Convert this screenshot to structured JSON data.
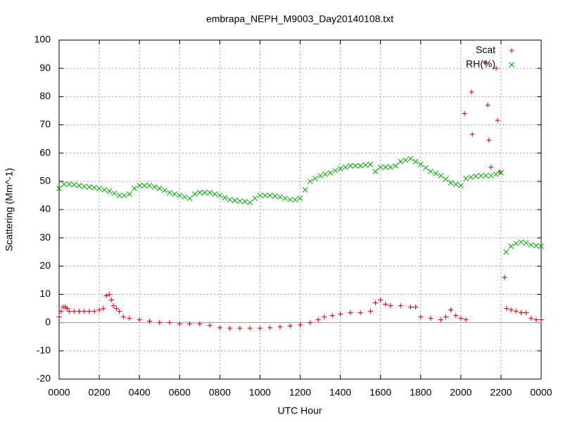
{
  "chart_data": {
    "type": "scatter",
    "title": "embrapa_NEPH_M9003_Day20140108.txt",
    "xlabel": "UTC Hour",
    "ylabel": "Scattering (Mm^-1)",
    "xlim": [
      0,
      24
    ],
    "ylim": [
      -20,
      100
    ],
    "xticks": [
      {
        "value": 0,
        "label": "0000"
      },
      {
        "value": 2,
        "label": "0200"
      },
      {
        "value": 4,
        "label": "0400"
      },
      {
        "value": 6,
        "label": "0600"
      },
      {
        "value": 8,
        "label": "0800"
      },
      {
        "value": 10,
        "label": "1000"
      },
      {
        "value": 12,
        "label": "1200"
      },
      {
        "value": 14,
        "label": "1400"
      },
      {
        "value": 16,
        "label": "1600"
      },
      {
        "value": 18,
        "label": "1800"
      },
      {
        "value": 20,
        "label": "2000"
      },
      {
        "value": 22,
        "label": "2200"
      },
      {
        "value": 24,
        "label": "0000"
      }
    ],
    "yticks": [
      -20,
      -10,
      0,
      10,
      20,
      30,
      40,
      50,
      60,
      70,
      80,
      90,
      100
    ],
    "grid": true,
    "zeroaxis": true,
    "legend": "top-right",
    "series": [
      {
        "name": "Scat",
        "color": "#cc0000",
        "marker": "plus",
        "x": [
          0,
          0.1,
          0.2,
          0.3,
          0.4,
          0.5,
          0.75,
          1,
          1.25,
          1.5,
          1.75,
          2,
          2.2,
          2.35,
          2.5,
          2.6,
          2.7,
          2.85,
          3,
          3.2,
          3.5,
          4,
          4.5,
          5,
          5.5,
          6,
          6.5,
          7,
          7.5,
          8,
          8.5,
          9,
          9.5,
          10,
          10.5,
          11,
          11.5,
          12,
          12.5,
          12.9,
          13.2,
          13.6,
          14,
          14.5,
          15,
          15.5,
          15.75,
          16,
          16.25,
          16.5,
          17,
          17.5,
          17.75,
          18,
          18.5,
          19,
          19.25,
          19.5,
          19.75,
          20,
          20.25,
          20.18,
          20.53,
          20.57,
          21.23,
          21.34,
          21.4,
          21.5,
          21.76,
          21.83,
          21.93,
          22.18,
          22.28,
          22.5,
          22.75,
          23,
          23.25,
          23.5,
          23.75,
          24
        ],
        "values": [
          2,
          4,
          5.5,
          5.5,
          5,
          4,
          4,
          4,
          4,
          4,
          4,
          4.5,
          5,
          9.5,
          10,
          8,
          6,
          5,
          4,
          2,
          1.5,
          1,
          0.5,
          0,
          0,
          -0.5,
          -0.5,
          -0.5,
          -1,
          -1.8,
          -2,
          -2,
          -2,
          -2,
          -1.8,
          -1.5,
          -1.2,
          -0.8,
          0,
          1,
          2,
          2.5,
          3,
          3.5,
          3.5,
          4,
          7,
          8,
          6.5,
          6,
          6,
          5.5,
          5.5,
          2,
          1.5,
          1,
          2,
          4.5,
          2.5,
          1.5,
          1,
          74,
          81.6,
          66.6,
          92,
          77,
          64.6,
          55,
          90,
          71.6,
          53.4,
          16,
          5,
          4.5,
          4,
          3.5,
          3.5,
          1.5,
          1,
          1
        ]
      },
      {
        "name": "RH(%)",
        "color": "#00a000",
        "marker": "cross",
        "x": [
          0,
          0.25,
          0.5,
          0.75,
          1,
          1.25,
          1.5,
          1.75,
          2,
          2.25,
          2.5,
          2.75,
          3,
          3.25,
          3.5,
          3.75,
          4,
          4.25,
          4.5,
          4.75,
          5,
          5.25,
          5.5,
          5.75,
          6,
          6.25,
          6.5,
          6.75,
          7,
          7.25,
          7.5,
          7.75,
          8,
          8.25,
          8.5,
          8.75,
          9,
          9.25,
          9.5,
          9.75,
          10,
          10.25,
          10.5,
          10.75,
          11,
          11.25,
          11.5,
          11.75,
          12,
          12.25,
          12.5,
          12.75,
          13,
          13.25,
          13.5,
          13.75,
          14,
          14.25,
          14.5,
          14.75,
          15,
          15.25,
          15.5,
          15.75,
          16,
          16.25,
          16.5,
          16.75,
          17,
          17.25,
          17.5,
          17.75,
          18,
          18.25,
          18.5,
          18.75,
          19,
          19.25,
          19.5,
          19.75,
          20,
          20.25,
          20.5,
          20.75,
          21,
          21.25,
          21.5,
          21.75,
          22,
          22.25,
          22.5,
          22.75,
          23,
          23.25,
          23.5,
          23.75,
          24
        ],
        "values": [
          47.5,
          49,
          49,
          48.8,
          48.5,
          48.2,
          48,
          47.8,
          47.5,
          47,
          46.5,
          45.8,
          45,
          45,
          45.5,
          47.5,
          48.5,
          48.5,
          48.5,
          48,
          47.5,
          46.8,
          46,
          45.5,
          45,
          44.5,
          44,
          45.5,
          46,
          46,
          46,
          45.5,
          45,
          44.2,
          43.5,
          43.2,
          43,
          42.8,
          42.5,
          44,
          45,
          45,
          45,
          44.8,
          44.5,
          44,
          43.5,
          43.5,
          44,
          47,
          50,
          51,
          52,
          52.5,
          53,
          53.8,
          54.5,
          55,
          55.5,
          55.5,
          55.5,
          55.8,
          56,
          53.5,
          55,
          55,
          55,
          55.5,
          57,
          57.5,
          58,
          57,
          56,
          54.8,
          53.5,
          52.8,
          52,
          50.8,
          49.5,
          49,
          48.5,
          51,
          51.5,
          51.8,
          52,
          52,
          52,
          52.5,
          53,
          25,
          27,
          28,
          28.5,
          28.2,
          27.5,
          27.2,
          27
        ]
      }
    ]
  }
}
